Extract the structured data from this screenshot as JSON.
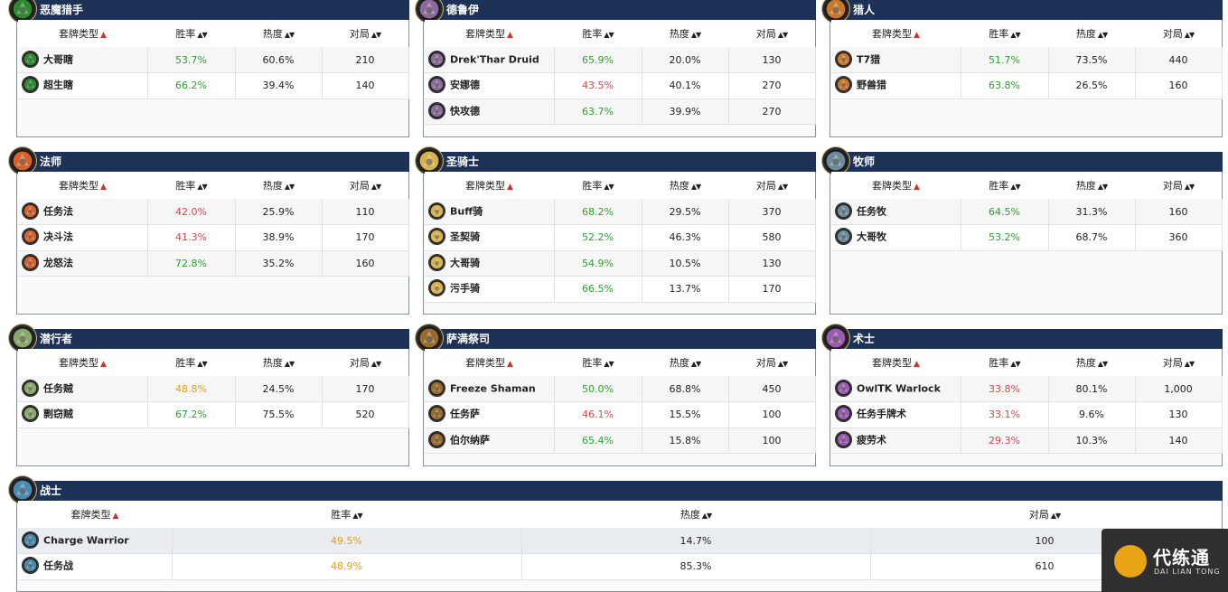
{
  "table_headers": {
    "deck_type": "套牌类型",
    "winrate": "胜率",
    "popularity": "热度",
    "games": "对局"
  },
  "panels": [
    {
      "name": "恶魔猎手",
      "icon": "demon-hunter-icon",
      "color": "#2f8a2f",
      "rows": [
        {
          "deck": "大哥瞎",
          "winrate": "53.7%",
          "wr_color": "green",
          "popularity": "60.6%",
          "games": "210"
        },
        {
          "deck": "超生瞎",
          "winrate": "66.2%",
          "wr_color": "green",
          "popularity": "39.4%",
          "games": "140"
        }
      ]
    },
    {
      "name": "德鲁伊",
      "icon": "druid-icon",
      "color": "#8a6a9a",
      "rows": [
        {
          "deck": "Drek'Thar Druid",
          "winrate": "65.9%",
          "wr_color": "green",
          "popularity": "20.0%",
          "games": "130"
        },
        {
          "deck": "安娜德",
          "winrate": "43.5%",
          "wr_color": "red",
          "popularity": "40.1%",
          "games": "270"
        },
        {
          "deck": "快攻德",
          "winrate": "63.7%",
          "wr_color": "green",
          "popularity": "39.9%",
          "games": "270"
        }
      ]
    },
    {
      "name": "猎人",
      "icon": "hunter-icon",
      "color": "#c9782a",
      "rows": [
        {
          "deck": "T7猎",
          "winrate": "51.7%",
          "wr_color": "green",
          "popularity": "73.5%",
          "games": "440"
        },
        {
          "deck": "野兽猎",
          "winrate": "63.8%",
          "wr_color": "green",
          "popularity": "26.5%",
          "games": "160"
        }
      ]
    },
    {
      "name": "法师",
      "icon": "mage-icon",
      "color": "#d9622a",
      "rows": [
        {
          "deck": "任务法",
          "winrate": "42.0%",
          "wr_color": "red",
          "popularity": "25.9%",
          "games": "110"
        },
        {
          "deck": "决斗法",
          "winrate": "41.3%",
          "wr_color": "red",
          "popularity": "38.9%",
          "games": "170"
        },
        {
          "deck": "龙怒法",
          "winrate": "72.8%",
          "wr_color": "green",
          "popularity": "35.2%",
          "games": "160"
        }
      ]
    },
    {
      "name": "圣骑士",
      "icon": "paladin-icon",
      "color": "#d8b24a",
      "rows": [
        {
          "deck": "Buff骑",
          "winrate": "68.2%",
          "wr_color": "green",
          "popularity": "29.5%",
          "games": "370"
        },
        {
          "deck": "圣契骑",
          "winrate": "52.2%",
          "wr_color": "green",
          "popularity": "46.3%",
          "games": "580"
        },
        {
          "deck": "大哥骑",
          "winrate": "54.9%",
          "wr_color": "green",
          "popularity": "10.5%",
          "games": "130"
        },
        {
          "deck": "污手骑",
          "winrate": "66.5%",
          "wr_color": "green",
          "popularity": "13.7%",
          "games": "170"
        }
      ]
    },
    {
      "name": "牧师",
      "icon": "priest-icon",
      "color": "#6c8a9a",
      "rows": [
        {
          "deck": "任务牧",
          "winrate": "64.5%",
          "wr_color": "green",
          "popularity": "31.3%",
          "games": "160"
        },
        {
          "deck": "大哥牧",
          "winrate": "53.2%",
          "wr_color": "green",
          "popularity": "68.7%",
          "games": "360"
        }
      ]
    },
    {
      "name": "潜行者",
      "icon": "rogue-icon",
      "color": "#8aa86a",
      "rows": [
        {
          "deck": "任务贼",
          "winrate": "48.8%",
          "wr_color": "orange",
          "popularity": "24.5%",
          "games": "170"
        },
        {
          "deck": "剽窃贼",
          "winrate": "67.2%",
          "wr_color": "green",
          "popularity": "75.5%",
          "games": "520"
        }
      ]
    },
    {
      "name": "萨满祭司",
      "icon": "shaman-icon",
      "color": "#9a6a2a",
      "rows": [
        {
          "deck": "Freeze Shaman",
          "winrate": "50.0%",
          "wr_color": "green",
          "popularity": "68.8%",
          "games": "450"
        },
        {
          "deck": "任务萨",
          "winrate": "46.1%",
          "wr_color": "red",
          "popularity": "15.5%",
          "games": "100"
        },
        {
          "deck": "伯尔纳萨",
          "winrate": "65.4%",
          "wr_color": "green",
          "popularity": "15.8%",
          "games": "100"
        }
      ]
    },
    {
      "name": "术士",
      "icon": "warlock-icon",
      "color": "#9a5ab0",
      "rows": [
        {
          "deck": "OwlTK Warlock",
          "winrate": "33.8%",
          "wr_color": "red",
          "popularity": "80.1%",
          "games": "1,000"
        },
        {
          "deck": "任务手牌术",
          "winrate": "33.1%",
          "wr_color": "red",
          "popularity": "9.6%",
          "games": "130"
        },
        {
          "deck": "疲劳术",
          "winrate": "29.3%",
          "wr_color": "red",
          "popularity": "10.3%",
          "games": "140"
        }
      ]
    },
    {
      "name": "战士",
      "icon": "warrior-icon",
      "color": "#4a8ab0",
      "rows": [
        {
          "deck": "Charge Warrior",
          "winrate": "49.5%",
          "wr_color": "orange",
          "popularity": "14.7%",
          "games": "100"
        },
        {
          "deck": "任务战",
          "winrate": "48.9%",
          "wr_color": "orange",
          "popularity": "85.3%",
          "games": "610"
        }
      ]
    }
  ],
  "logo": {
    "cn": "代练通",
    "en": "DAI LIAN TONG"
  }
}
